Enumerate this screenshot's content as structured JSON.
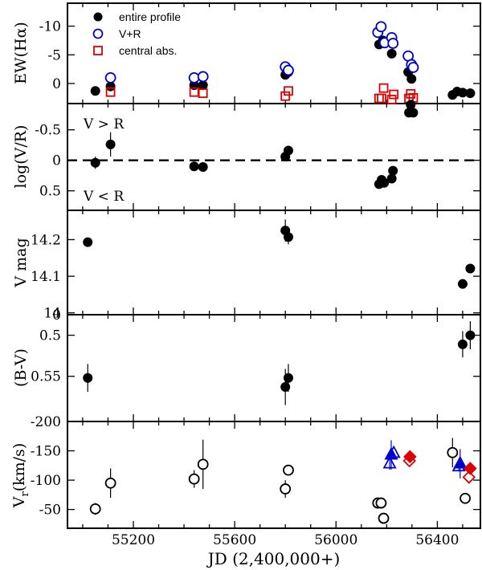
{
  "xaxis": {
    "label": "JD (2,400,000+)",
    "ticks": [
      55200,
      55600,
      56000,
      56400
    ],
    "tick_labels": [
      "55200",
      "55600",
      "56000",
      "56400"
    ],
    "range": [
      54940,
      56570
    ]
  },
  "colors": {
    "black": "#000000",
    "blue": "#0000cc",
    "red": "#dd0000"
  },
  "chart_data": [
    {
      "id": "ew",
      "type": "scatter",
      "ylabel": "EW(Hα)",
      "ylim": [
        -14,
        3.5
      ],
      "ytick_values": [
        -10,
        -5,
        0
      ],
      "ytick_labels": [
        "-10",
        "-5",
        "0"
      ],
      "legend": {
        "placement": "top-left",
        "entries": [
          {
            "label": "entire profile",
            "marker": "filled-circle",
            "color": "#000000"
          },
          {
            "label": "V+R",
            "marker": "open-circle",
            "color": "#0000cc"
          },
          {
            "label": "central abs.",
            "marker": "open-square",
            "color": "#dd0000"
          }
        ]
      },
      "series": [
        {
          "name": "entire profile",
          "marker": "filled-circle",
          "color": "#000000",
          "x": [
            55050,
            55110,
            55440,
            55475,
            55800,
            55812,
            56170,
            56185,
            56192,
            56220,
            56285,
            56298,
            56460,
            56478,
            56500,
            56530
          ],
          "y": [
            1.3,
            0.5,
            0.3,
            0.3,
            -1.5,
            -2.0,
            -6.8,
            -7.5,
            -7.0,
            -5.2,
            -2.0,
            -0.8,
            2.0,
            1.4,
            1.6,
            1.7
          ]
        },
        {
          "name": "V+R",
          "marker": "open-circle",
          "color": "#0000cc",
          "x": [
            55110,
            55440,
            55475,
            55800,
            55812,
            56165,
            56178,
            56192,
            56220,
            56225,
            56285,
            56298,
            56305
          ],
          "y": [
            -1.0,
            -1.0,
            -1.2,
            -2.9,
            -2.3,
            -8.9,
            -9.9,
            -7.1,
            -8.0,
            -7.0,
            -4.8,
            -3.3,
            -2.8
          ]
        },
        {
          "name": "central abs.",
          "marker": "open-square",
          "color": "#dd0000",
          "x": [
            55110,
            55440,
            55475,
            55800,
            55812,
            56170,
            56180,
            56188,
            56220,
            56228,
            56288,
            56295,
            56305
          ],
          "y": [
            1.5,
            1.5,
            1.7,
            2.2,
            1.3,
            2.6,
            2.6,
            0.8,
            2.8,
            1.9,
            2.6,
            1.8,
            2.5
          ]
        }
      ]
    },
    {
      "id": "vr",
      "type": "scatter",
      "ylabel": "log(V/R)",
      "ylim": [
        -0.93,
        0.82
      ],
      "ytick_values": [
        0.5,
        0,
        -0.5
      ],
      "ytick_labels": [
        "0.5",
        "0",
        "-0.5"
      ],
      "annotations": [
        "V > R",
        "V < R"
      ],
      "reference_line": {
        "y": 0,
        "style": "dashed"
      },
      "series": [
        {
          "name": "log(V/R)",
          "marker": "filled-circle",
          "color": "#000000",
          "x": [
            55050,
            55110,
            55440,
            55475,
            55800,
            55812,
            56170,
            56180,
            56190,
            56220,
            56225,
            56288,
            56305,
            56295
          ],
          "y": [
            0.04,
            -0.26,
            0.1,
            0.11,
            -0.06,
            -0.16,
            0.39,
            0.32,
            0.37,
            0.3,
            0.17,
            -0.78,
            -0.78,
            -0.91
          ],
          "yerr": [
            0.1,
            0.2,
            0,
            0,
            0,
            0,
            0,
            0,
            0,
            0,
            0,
            0,
            0,
            0
          ]
        }
      ]
    },
    {
      "id": "vmag",
      "type": "scatter",
      "ylabel": "V mag",
      "ylim": [
        14.28,
        13.995
      ],
      "ytick_values": [
        14.0,
        14.1,
        14.2
      ],
      "ytick_labels": [
        "14",
        "14.1",
        "14.2"
      ],
      "series": [
        {
          "name": "V mag",
          "marker": "filled-circle",
          "color": "#000000",
          "x": [
            55020,
            55800,
            55812,
            56500,
            56530
          ],
          "y": [
            14.193,
            14.225,
            14.207,
            14.079,
            14.121
          ],
          "yerr": [
            0.01,
            0.03,
            0.02,
            0.013,
            0.013
          ]
        }
      ]
    },
    {
      "id": "bv",
      "type": "scatter",
      "ylabel": "(B-V)",
      "ylim": [
        0.475,
        0.605
      ],
      "ytick_values": [
        0.5,
        0.55
      ],
      "ytick_labels": [
        "0.5",
        "0.55"
      ],
      "extra_ticks": [
        {
          "value": 0.475,
          "label": "0"
        }
      ],
      "series": [
        {
          "name": "B-V",
          "marker": "filled-circle",
          "color": "#000000",
          "x": [
            55020,
            55800,
            55812,
            56500,
            56530
          ],
          "y": [
            0.552,
            0.563,
            0.552,
            0.511,
            0.5
          ],
          "yerr": [
            0.017,
            0.022,
            0.017,
            0.016,
            0.017
          ]
        }
      ]
    },
    {
      "id": "rv",
      "type": "scatter",
      "ylabel": "V_r (km/s)",
      "ylim": [
        -200,
        -18
      ],
      "ytick_values": [
        -50,
        -100,
        -150,
        -200
      ],
      "ytick_labels": [
        "-50",
        "-100",
        "-150",
        "-200"
      ],
      "series": [
        {
          "name": "open circles",
          "marker": "open-circle",
          "color": "#000000",
          "x": [
            55050,
            55110,
            55440,
            55475,
            55800,
            55812,
            56165,
            56178,
            56188,
            56460,
            56510
          ],
          "y": [
            -51,
            -95,
            -102,
            -127,
            -85,
            -117,
            -61,
            -61,
            -35,
            -147,
            -69
          ],
          "yerr": [
            10,
            25,
            15,
            42,
            15,
            0,
            0,
            0,
            0,
            25,
            0
          ]
        },
        {
          "name": "open triangles",
          "marker": "open-triangle",
          "color": "#0000cc",
          "x": [
            56212,
            56228,
            56485
          ],
          "y": [
            -128,
            -146,
            -123
          ],
          "yerr": [
            10,
            0,
            8
          ]
        },
        {
          "name": "filled triangles",
          "marker": "filled-triangle",
          "color": "#0000cc",
          "x": [
            56218,
            56490
          ],
          "y": [
            -143,
            -128
          ],
          "yerr": [
            25,
            25
          ]
        },
        {
          "name": "open diamonds",
          "marker": "open-diamond",
          "color": "#dd0000",
          "x": [
            56290,
            56525
          ],
          "y": [
            -133,
            -105
          ]
        },
        {
          "name": "filled diamonds",
          "marker": "filled-diamond",
          "color": "#dd0000",
          "x": [
            56292,
            56530
          ],
          "y": [
            -140,
            -120
          ]
        }
      ]
    }
  ]
}
